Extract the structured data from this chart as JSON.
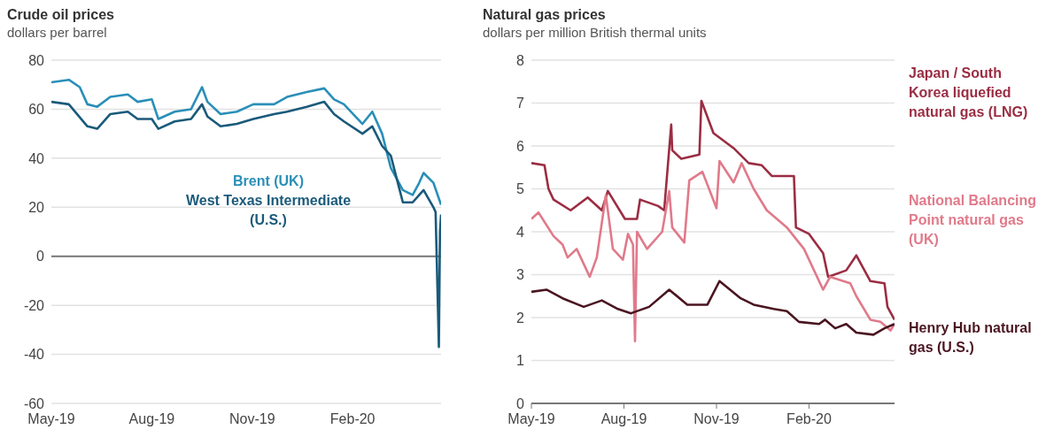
{
  "chart_data": [
    {
      "type": "line",
      "title": "Crude oil prices",
      "subtitle": "dollars per barrel",
      "marker": "none",
      "grid": "y",
      "xlim": [
        "2019-05-01",
        "2020-04-22"
      ],
      "xticks": [
        {
          "value": "2019-05-01",
          "label": "May-19"
        },
        {
          "value": "2019-08-01",
          "label": "Aug-19"
        },
        {
          "value": "2019-11-01",
          "label": "Nov-19"
        },
        {
          "value": "2020-02-01",
          "label": "Feb-20"
        }
      ],
      "ylim": [
        -60,
        80
      ],
      "yticks": [
        -60,
        -40,
        -20,
        0,
        20,
        40,
        60,
        80
      ],
      "series": [
        {
          "name": "Brent (UK)",
          "color": "#2a8fb8",
          "x": [
            "2019-05-01",
            "2019-05-17",
            "2019-05-27",
            "2019-06-03",
            "2019-06-12",
            "2019-06-24",
            "2019-07-10",
            "2019-07-19",
            "2019-08-01",
            "2019-08-07",
            "2019-08-22",
            "2019-09-06",
            "2019-09-16",
            "2019-09-21",
            "2019-10-03",
            "2019-10-18",
            "2019-11-02",
            "2019-11-21",
            "2019-12-03",
            "2019-12-21",
            "2020-01-06",
            "2020-01-15",
            "2020-01-24",
            "2020-02-10",
            "2020-02-19",
            "2020-02-28",
            "2020-03-07",
            "2020-03-18",
            "2020-03-27",
            "2020-04-02",
            "2020-04-06",
            "2020-04-15",
            "2020-04-22"
          ],
          "values": [
            71,
            72,
            69,
            62,
            61,
            65,
            66,
            63,
            64,
            56,
            59,
            60,
            69,
            63,
            58,
            59,
            62,
            62,
            65,
            67,
            68.5,
            64,
            62,
            54,
            59,
            50,
            36,
            27,
            25,
            30,
            34,
            30,
            21
          ]
        },
        {
          "name": "West Texas Intermediate (U.S.)",
          "color": "#1a5a7a",
          "x": [
            "2019-05-01",
            "2019-05-17",
            "2019-06-03",
            "2019-06-12",
            "2019-06-24",
            "2019-07-10",
            "2019-07-19",
            "2019-08-01",
            "2019-08-07",
            "2019-08-22",
            "2019-09-06",
            "2019-09-16",
            "2019-09-21",
            "2019-10-03",
            "2019-10-18",
            "2019-11-02",
            "2019-11-21",
            "2019-12-03",
            "2019-12-21",
            "2020-01-06",
            "2020-01-15",
            "2020-01-24",
            "2020-02-10",
            "2020-02-19",
            "2020-02-28",
            "2020-03-07",
            "2020-03-18",
            "2020-03-27",
            "2020-04-02",
            "2020-04-06",
            "2020-04-15",
            "2020-04-17",
            "2020-04-20",
            "2020-04-21",
            "2020-04-22"
          ],
          "values": [
            63,
            62,
            53,
            52,
            58,
            59,
            56,
            56,
            52,
            55,
            56,
            62,
            57,
            53,
            54,
            56,
            58,
            59,
            61,
            63,
            58,
            55,
            50,
            53,
            45,
            41,
            22,
            22,
            25,
            27,
            20,
            18,
            -37,
            10,
            17
          ]
        }
      ]
    },
    {
      "type": "line",
      "title": "Natural gas prices",
      "subtitle": "dollars per million British thermal units",
      "marker": "none",
      "grid": "y",
      "xlim": [
        "2019-05-01",
        "2020-04-26"
      ],
      "xticks": [
        {
          "value": "2019-05-01",
          "label": "May-19"
        },
        {
          "value": "2019-08-01",
          "label": "Aug-19"
        },
        {
          "value": "2019-11-01",
          "label": "Nov-19"
        },
        {
          "value": "2020-02-01",
          "label": "Feb-20"
        }
      ],
      "ylim": [
        0,
        8
      ],
      "yticks": [
        0,
        1,
        2,
        3,
        4,
        5,
        6,
        7,
        8
      ],
      "series": [
        {
          "name": "Japan / South Korea liquefied natural gas (LNG)",
          "color": "#9b2d43",
          "x": [
            "2019-05-01",
            "2019-05-14",
            "2019-05-18",
            "2019-05-23",
            "2019-06-09",
            "2019-06-26",
            "2019-07-10",
            "2019-07-16",
            "2019-08-02",
            "2019-08-14",
            "2019-08-17",
            "2019-09-04",
            "2019-09-10",
            "2019-09-17",
            "2019-09-18",
            "2019-09-27",
            "2019-10-15",
            "2019-10-17",
            "2019-10-29",
            "2019-11-18",
            "2019-12-03",
            "2019-12-16",
            "2019-12-26",
            "2020-01-17",
            "2020-01-19",
            "2020-02-01",
            "2020-02-15",
            "2020-02-20",
            "2020-03-09",
            "2020-03-19",
            "2020-04-02",
            "2020-04-16",
            "2020-04-19",
            "2020-04-26"
          ],
          "values": [
            5.6,
            5.55,
            5.0,
            4.75,
            4.5,
            4.8,
            4.5,
            4.95,
            4.3,
            4.3,
            4.75,
            4.6,
            4.5,
            6.5,
            5.9,
            5.7,
            5.8,
            7.05,
            6.3,
            5.95,
            5.6,
            5.55,
            5.3,
            5.3,
            4.1,
            3.95,
            3.5,
            2.95,
            3.1,
            3.45,
            2.85,
            2.8,
            2.25,
            1.95
          ]
        },
        {
          "name": "National Balancing Point natural gas (UK)",
          "color": "#e07a8a",
          "x": [
            "2019-05-01",
            "2019-05-08",
            "2019-05-23",
            "2019-06-01",
            "2019-06-06",
            "2019-06-15",
            "2019-06-28",
            "2019-07-05",
            "2019-07-14",
            "2019-07-21",
            "2019-07-31",
            "2019-08-05",
            "2019-08-10",
            "2019-08-12",
            "2019-08-14",
            "2019-08-24",
            "2019-09-08",
            "2019-09-15",
            "2019-09-18",
            "2019-09-30",
            "2019-10-05",
            "2019-10-18",
            "2019-11-01",
            "2019-11-04",
            "2019-11-18",
            "2019-11-26",
            "2019-12-08",
            "2019-12-21",
            "2020-01-10",
            "2020-01-27",
            "2020-02-15",
            "2020-02-22",
            "2020-03-13",
            "2020-03-19",
            "2020-04-02",
            "2020-04-12",
            "2020-04-22",
            "2020-04-26"
          ],
          "values": [
            4.3,
            4.45,
            3.9,
            3.7,
            3.4,
            3.6,
            2.95,
            3.4,
            4.85,
            3.6,
            3.35,
            3.95,
            3.7,
            1.45,
            4.0,
            3.6,
            4.0,
            4.95,
            4.1,
            3.75,
            5.2,
            5.4,
            4.55,
            5.65,
            5.15,
            5.6,
            5.0,
            4.5,
            4.1,
            3.6,
            2.65,
            2.95,
            2.8,
            2.5,
            1.95,
            1.9,
            1.7,
            1.85
          ]
        },
        {
          "name": "Henry Hub natural gas (U.S.)",
          "color": "#4a1520",
          "x": [
            "2019-05-01",
            "2019-05-16",
            "2019-06-01",
            "2019-06-22",
            "2019-07-10",
            "2019-07-26",
            "2019-08-08",
            "2019-08-26",
            "2019-09-15",
            "2019-10-03",
            "2019-10-23",
            "2019-11-04",
            "2019-11-25",
            "2019-12-08",
            "2019-12-28",
            "2020-01-10",
            "2020-01-22",
            "2020-02-11",
            "2020-02-17",
            "2020-02-27",
            "2020-03-09",
            "2020-03-19",
            "2020-04-05",
            "2020-04-16",
            "2020-04-26"
          ],
          "values": [
            2.6,
            2.65,
            2.45,
            2.25,
            2.4,
            2.2,
            2.1,
            2.25,
            2.65,
            2.3,
            2.3,
            2.85,
            2.45,
            2.3,
            2.2,
            2.15,
            1.9,
            1.85,
            1.95,
            1.75,
            1.85,
            1.65,
            1.6,
            1.75,
            1.85
          ]
        }
      ]
    }
  ]
}
